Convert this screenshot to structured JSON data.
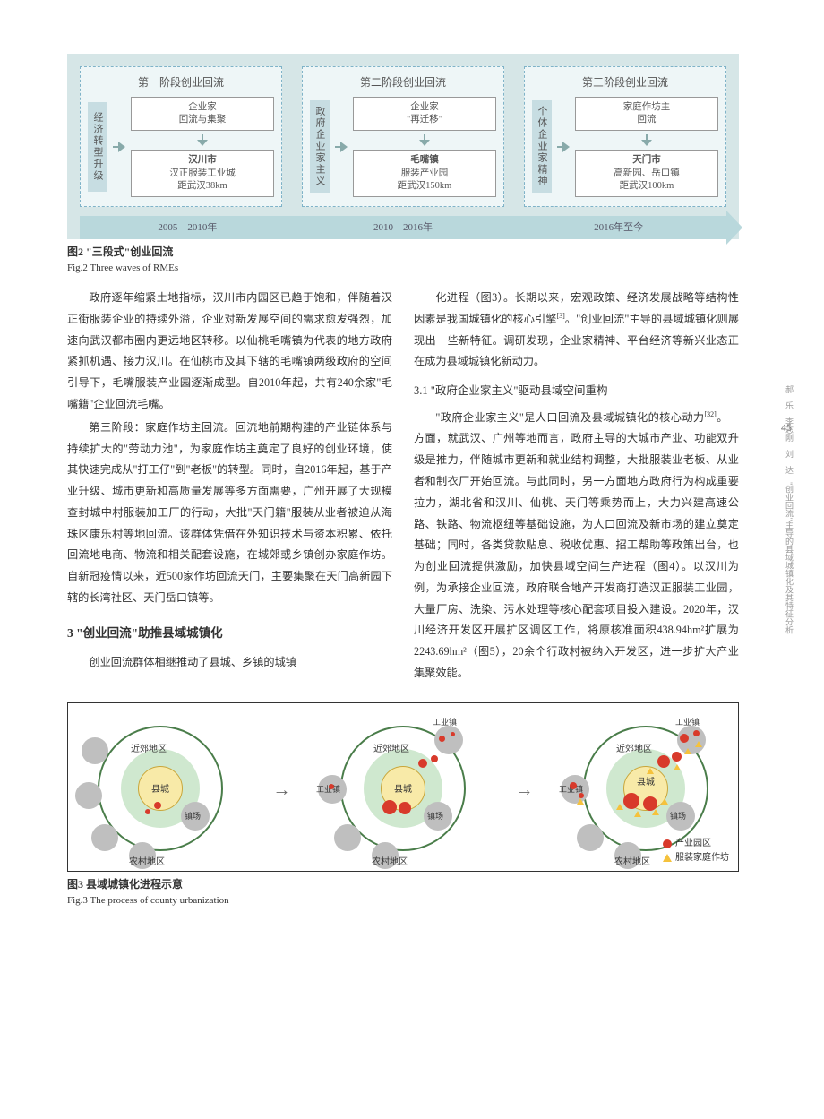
{
  "fig2": {
    "phases": [
      {
        "title": "第一阶段创业回流",
        "left": "经济转型升级",
        "top": "企业家\n回流与集聚",
        "bottom_bold": "汉川市",
        "bottom": "汉正服装工业城\n距武汉38km"
      },
      {
        "title": "第二阶段创业回流",
        "left": "政府企业家主义",
        "top": "企业家\n\"再迁移\"",
        "bottom_bold": "毛嘴镇",
        "bottom": "服装产业园\n距武汉150km"
      },
      {
        "title": "第三阶段创业回流",
        "left": "个体企业家精神",
        "top": "家庭作坊主\n回流",
        "bottom_bold": "天门市",
        "bottom": "高新园、岳口镇\n距武汉100km"
      }
    ],
    "timeline": [
      "2005—2010年",
      "2010—2016年",
      "2016年至今"
    ],
    "caption_zh": "图2  \"三段式\"创业回流",
    "caption_en": "Fig.2  Three waves of RMEs"
  },
  "body": {
    "p1": "政府逐年缩紧土地指标，汉川市内园区已趋于饱和，伴随着汉正街服装企业的持续外溢，企业对新发展空间的需求愈发强烈，加速向武汉都市圈内更远地区转移。以仙桃毛嘴镇为代表的地方政府紧抓机遇、接力汉川。在仙桃市及其下辖的毛嘴镇两级政府的空间引导下，毛嘴服装产业园逐渐成型。自2010年起，共有240余家\"毛嘴籍\"企业回流毛嘴。",
    "p2": "第三阶段：家庭作坊主回流。回流地前期构建的产业链体系与持续扩大的\"劳动力池\"，为家庭作坊主奠定了良好的创业环境，使其快速完成从\"打工仔\"到\"老板\"的转型。同时，自2016年起，基于产业升级、城市更新和高质量发展等多方面需要，广州开展了大规模查封城中村服装加工厂的行动，大批\"天门籍\"服装从业者被迫从海珠区康乐村等地回流。该群体凭借在外知识技术与资本积累、依托回流地电商、物流和相关配套设施，在城郊或乡镇创办家庭作坊。自新冠疫情以来，近500家作坊回流天门，主要集聚在天门高新园下辖的长湾社区、天门岳口镇等。",
    "h3": "3  \"创业回流\"助推县域城镇化",
    "p3": "创业回流群体相继推动了县城、乡镇的城镇",
    "p4": "化进程（图3）。长期以来，宏观政策、经济发展战略等结构性因素是我国城镇化的核心引擎",
    "ref4": "[3]",
    "p4b": "。\"创业回流\"主导的县域城镇化则展现出一些新特征。调研发现，企业家精神、平台经济等新兴业态正在成为县域城镇化新动力。",
    "h31": "3.1  \"政府企业家主义\"驱动县域空间重构",
    "p5a": "\"政府企业家主义\"是人口回流及县域城镇化的核心动力",
    "ref5": "[32]",
    "p5b": "。一方面，就武汉、广州等地而言，政府主导的大城市产业、功能双升级是推力，伴随城市更新和就业结构调整，大批服装业老板、从业者和制衣厂开始回流。与此同时，另一方面地方政府行为构成重要拉力，湖北省和汉川、仙桃、天门等乘势而上，大力兴建高速公路、铁路、物流枢纽等基础设施，为人口回流及新市场的建立奠定基础；同时，各类贷款贴息、税收优惠、招工帮助等政策出台，也为创业回流提供激励，加快县域空间生产进程（图4）。以汉川为例，为承接企业回流，政府联合地产开发商打造汉正服装工业园，大量厂房、洗染、污水处理等核心配套项目投入建设。2020年，汉川经济开发区开展扩区调区工作，将原核准面积438.94hm²扩展为2243.69hm²（图5），20余个行政村被纳入开发区，进一步扩大产业集聚效能。"
  },
  "page_number": "45",
  "margin_text": "郝　乐　李志刚　刘　达　\"创业回流\"主导的县域城镇化及其特征分析",
  "fig3": {
    "labels": {
      "suburb": "近郊地区",
      "county": "县城",
      "town_ind": "工业镇",
      "town_vil": "镇场",
      "rural": "农村地区"
    },
    "legend": {
      "red": "产业园区",
      "yellow": "服装家庭作坊"
    },
    "caption_zh": "图3  县域城镇化进程示意",
    "caption_en": "Fig.3  The process of county urbanization",
    "geometry": {
      "outer_d": 140,
      "mid_d": 88,
      "inner_d": 50,
      "grey_dot_d": 30,
      "red_sizes": [
        6,
        10,
        14,
        18
      ],
      "colors": {
        "outer_stroke": "#4a7d4a",
        "mid_fill": "#cfe8cf",
        "inner_fill": "#f8eaa8",
        "inner_stroke": "#c9a63a",
        "grey": "#bfbfbf",
        "red": "#d83a2b",
        "yellow": "#f5c23c"
      }
    }
  }
}
